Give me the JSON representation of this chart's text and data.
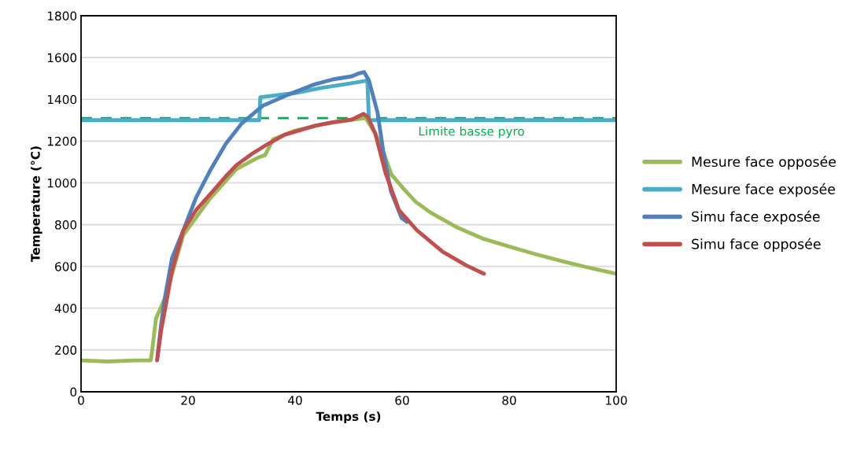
{
  "chart_data": {
    "type": "line",
    "xlabel": "Temps (s)",
    "ylabel": "Temperature (°C)",
    "xlim": [
      0,
      100
    ],
    "ylim": [
      0,
      1800
    ],
    "xticks": [
      0,
      20,
      40,
      60,
      80,
      100
    ],
    "yticks": [
      0,
      200,
      400,
      600,
      800,
      1000,
      1200,
      1400,
      1600,
      1800
    ],
    "grid": "y",
    "legend": "right",
    "marker": "none",
    "line_style": "solid",
    "ref_lines": [
      {
        "axis": "y",
        "value": 1310,
        "label": "Limite basse pyro",
        "color": "#00b050",
        "line_style": "dashed"
      }
    ],
    "series": [
      {
        "name": "Mesure face opposée",
        "color": "#9bbb59",
        "x": [
          0,
          5,
          10,
          13,
          13.3,
          14,
          15.7,
          19.1,
          24.1,
          29,
          33,
          34.4,
          35.9,
          40,
          45,
          50,
          53.2,
          55,
          56.5,
          58,
          60.3,
          62.5,
          65.3,
          70,
          75,
          80,
          84.9,
          90,
          94.7,
          100
        ],
        "values": [
          150,
          145,
          150,
          150,
          200,
          350,
          450,
          750,
          925,
          1065,
          1120,
          1133,
          1209,
          1250,
          1280,
          1300,
          1310,
          1235,
          1148,
          1040,
          971,
          910,
          858,
          790,
          734,
          695,
          659,
          625,
          595,
          565
        ]
      },
      {
        "name": "Mesure face exposée",
        "color": "#4bacc6",
        "x": [
          0,
          33.3,
          33.5,
          40,
          45,
          50,
          53.5,
          53.8,
          55,
          100
        ],
        "values": [
          1300,
          1300,
          1410,
          1430,
          1455,
          1475,
          1490,
          1300,
          1300,
          1300
        ]
      },
      {
        "name": "Simu face exposée",
        "color": "#4f81bd",
        "x": [
          14.3,
          15,
          15.7,
          17,
          19.1,
          21.5,
          24.1,
          27,
          30,
          34,
          38.8,
          43.7,
          47,
          50.6,
          52,
          52.9,
          53.8,
          55.4,
          56.5,
          57.9,
          59.9,
          60.9
        ],
        "values": [
          170,
          330,
          455,
          640,
          772,
          930,
          1058,
          1185,
          1284,
          1370,
          1423,
          1472,
          1495,
          1510,
          1525,
          1530,
          1490,
          1337,
          1148,
          960,
          832,
          813
        ]
      },
      {
        "name": "Simu face opposée",
        "color": "#c0504d",
        "x": [
          14.2,
          15,
          15.7,
          17,
          19.1,
          21.5,
          24.1,
          27,
          29,
          32,
          34.9,
          38,
          43.7,
          47,
          50.6,
          52.8,
          53.6,
          55,
          56.9,
          59.4,
          62.8,
          67.6,
          72,
          75.3
        ],
        "values": [
          150,
          300,
          395,
          580,
          772,
          870,
          945,
          1030,
          1084,
          1140,
          1186,
          1230,
          1273,
          1290,
          1303,
          1330,
          1315,
          1235,
          1047,
          870,
          772,
          670,
          605,
          565
        ]
      }
    ]
  }
}
